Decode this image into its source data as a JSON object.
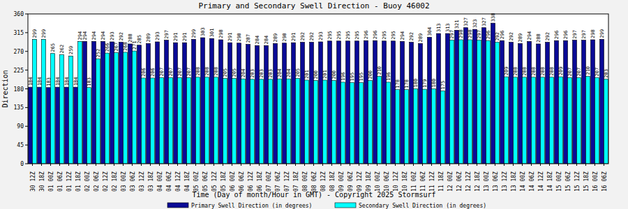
{
  "chart_data": {
    "type": "bar",
    "title": "Primary and Secondary Swell Direction - Buoy 46002",
    "x_label": "Time (Day of month/Hour in GMT) - Copyright 2025 Stormsurf",
    "y_label": "Direction",
    "categories": [
      "30 12Z",
      "30 18Z",
      "01 00Z",
      "01 06Z",
      "01 12Z",
      "01 18Z",
      "02 00Z",
      "02 06Z",
      "02 12Z",
      "02 18Z",
      "03 00Z",
      "03 06Z",
      "03 12Z",
      "03 18Z",
      "04 00Z",
      "04 06Z",
      "04 12Z",
      "04 18Z",
      "05 00Z",
      "05 06Z",
      "05 12Z",
      "05 18Z",
      "06 00Z",
      "06 06Z",
      "06 12Z",
      "06 18Z",
      "07 00Z",
      "07 06Z",
      "07 12Z",
      "07 18Z",
      "08 00Z",
      "08 06Z",
      "08 12Z",
      "08 18Z",
      "09 00Z",
      "09 06Z",
      "09 12Z",
      "09 18Z",
      "10 00Z",
      "10 06Z",
      "10 12Z",
      "10 18Z",
      "11 00Z",
      "11 06Z",
      "11 12Z",
      "11 18Z",
      "12 00Z",
      "12 06Z",
      "12 12Z",
      "12 18Z",
      "13 00Z",
      "13 06Z",
      "13 12Z",
      "13 18Z",
      "14 00Z",
      "14 06Z",
      "14 12Z",
      "14 18Z",
      "15 00Z",
      "15 06Z",
      "15 12Z",
      "15 18Z",
      "16 00Z",
      "16 06Z"
    ],
    "series": [
      {
        "name": "Primary Swell Direction (in degrees)",
        "color": "#0a0a96",
        "values": [
          184,
          184,
          183,
          184,
          184,
          184,
          294,
          294,
          294,
          293,
          292,
          288,
          285,
          289,
          293,
          297,
          291,
          291,
          299,
          303,
          301,
          298,
          291,
          290,
          287,
          284,
          284,
          289,
          290,
          291,
          292,
          292,
          293,
          295,
          295,
          295,
          295,
          296,
          296,
          295,
          295,
          294,
          292,
          289,
          304,
          313,
          313,
          321,
          327,
          323,
          327,
          338,
          296,
          292,
          289,
          294,
          288,
          292,
          296,
          296,
          297,
          297,
          298,
          299
        ]
      },
      {
        "name": "Secondary Swell Direction (in degrees)",
        "color": "#00ffff",
        "values": [
          299,
          299,
          265,
          262,
          259,
          294,
          183,
          252,
          266,
          267,
          268,
          271,
          206,
          206,
          207,
          207,
          207,
          207,
          208,
          208,
          208,
          205,
          205,
          204,
          203,
          203,
          203,
          204,
          204,
          205,
          201,
          200,
          201,
          200,
          196,
          195,
          195,
          200,
          210,
          196,
          178,
          178,
          180,
          179,
          180,
          175,
          297,
          298,
          298,
          297,
          296,
          292,
          209,
          208,
          208,
          208,
          208,
          208,
          209,
          207,
          207,
          210,
          207,
          203
        ]
      }
    ],
    "ylim": [
      0,
      360
    ],
    "yticks": [
      0,
      45,
      90,
      135,
      180,
      225,
      270,
      315,
      360
    ],
    "grid": false,
    "legend": "bottom",
    "data_labels": true
  }
}
